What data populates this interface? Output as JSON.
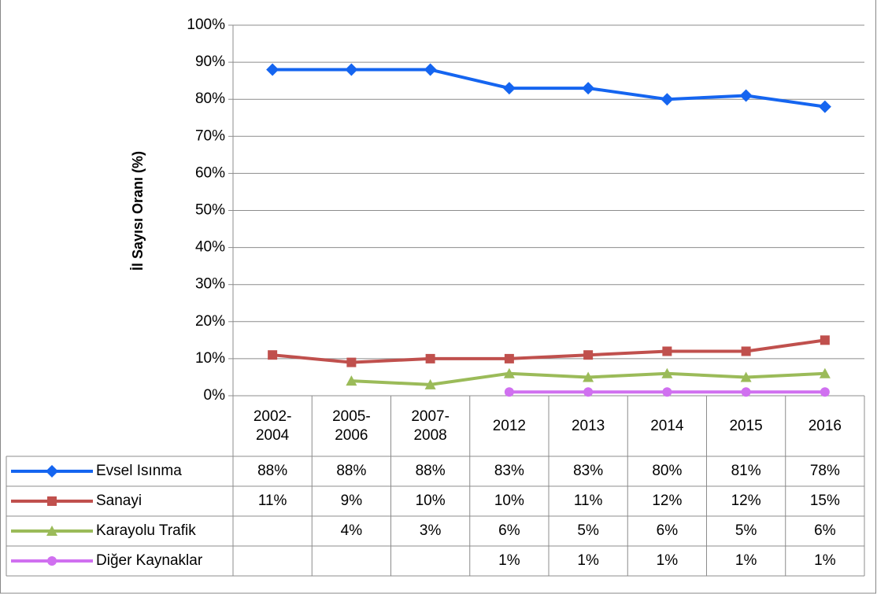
{
  "chart_data": {
    "type": "line",
    "y_label": "İl Sayısı Oranı (%)",
    "categories": [
      "2002-2004",
      "2005-2006",
      "2007-2008",
      "2012",
      "2013",
      "2014",
      "2015",
      "2016"
    ],
    "series": [
      {
        "name": "Evsel Isınma",
        "color": "#1565f0",
        "marker": "diamond",
        "values": [
          88,
          88,
          88,
          83,
          83,
          80,
          81,
          78
        ],
        "value_labels": [
          "88%",
          "88%",
          "88%",
          "83%",
          "83%",
          "80%",
          "81%",
          "78%"
        ]
      },
      {
        "name": "Sanayi",
        "color": "#c0504d",
        "marker": "square",
        "values": [
          11,
          9,
          10,
          10,
          11,
          12,
          12,
          15
        ],
        "value_labels": [
          "11%",
          "9%",
          "10%",
          "10%",
          "11%",
          "12%",
          "12%",
          "15%"
        ]
      },
      {
        "name": "Karayolu Trafik",
        "color": "#9bbb59",
        "marker": "triangle",
        "values": [
          null,
          4,
          3,
          6,
          5,
          6,
          5,
          6
        ],
        "value_labels": [
          null,
          "4%",
          "3%",
          "6%",
          "5%",
          "6%",
          "5%",
          "6%"
        ]
      },
      {
        "name": "Diğer Kaynaklar",
        "color": "#d070f0",
        "marker": "circle",
        "values": [
          null,
          null,
          null,
          1,
          1,
          1,
          1,
          1
        ],
        "value_labels": [
          null,
          null,
          null,
          "1%",
          "1%",
          "1%",
          "1%",
          "1%"
        ]
      }
    ],
    "ylim": [
      0,
      100
    ],
    "yticks": [
      {
        "value": 0,
        "label": "0%"
      },
      {
        "value": 10,
        "label": "10%"
      },
      {
        "value": 20,
        "label": "20%"
      },
      {
        "value": 30,
        "label": "30%"
      },
      {
        "value": 40,
        "label": "40%"
      },
      {
        "value": 50,
        "label": "50%"
      },
      {
        "value": 60,
        "label": "60%"
      },
      {
        "value": 70,
        "label": "70%"
      },
      {
        "value": 80,
        "label": "80%"
      },
      {
        "value": 90,
        "label": "90%"
      },
      {
        "value": 100,
        "label": "100%"
      }
    ],
    "grid": true
  }
}
